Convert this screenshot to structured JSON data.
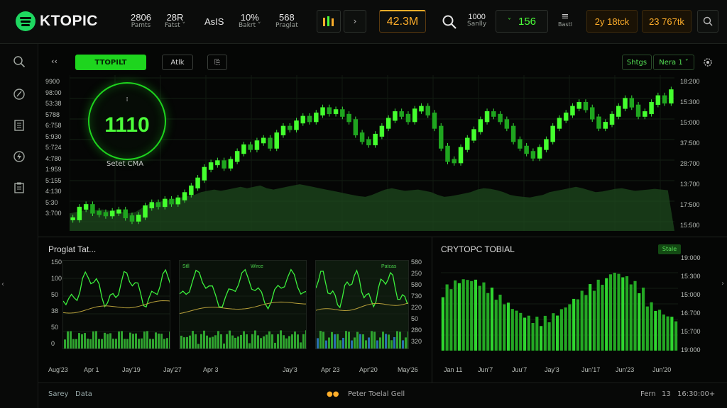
{
  "app": {
    "logo_text": "KTOPIC"
  },
  "topbar": {
    "stats": [
      {
        "value": "2806",
        "label": "Pamts"
      },
      {
        "value": "28R",
        "label": "Fatst ˅"
      },
      {
        "value": "AsIS",
        "label": ""
      },
      {
        "value": "10%",
        "label": "Bakrt ˅"
      },
      {
        "value": "568",
        "label": "Praglat"
      }
    ],
    "price_box": "42.3M",
    "search_stat": {
      "value": "1000",
      "label": "Sanlly"
    },
    "green_box": "156",
    "menu_label": "Bastl",
    "range_label": "2y 18tck",
    "count_label": "23 767tk"
  },
  "main_chart": {
    "toolbar": {
      "back": "‹‹",
      "tab_active": "TTOPILT",
      "tab2": "Atlk",
      "tab3": "⎘"
    },
    "right_controls": {
      "label1": "Shtgs",
      "dropdown": "Nera 1"
    },
    "gauge": {
      "value": "1110",
      "caption": "Setet CMA"
    },
    "left_axis": [
      "9900",
      "98:00",
      "53:38",
      "5788",
      "6:758",
      "5:930",
      "5:724",
      "4:780",
      "1:959",
      "5:155",
      "4:130",
      "5:30",
      "3:700"
    ],
    "right_axis": [
      "18:200",
      "15:300",
      "15:000",
      "37:500",
      "28:700",
      "13:700",
      "17:500",
      "15:500"
    ]
  },
  "chart_data": {
    "type": "line",
    "title": "",
    "series": [
      {
        "name": "price",
        "values": [
          12,
          28,
          32,
          22,
          20,
          18,
          22,
          24,
          15,
          10,
          16,
          30,
          35,
          32,
          40,
          36,
          42,
          50,
          60,
          72,
          88,
          95,
          98,
          90,
          100,
          112,
          122,
          118,
          128,
          132,
          120,
          140,
          150,
          148,
          158,
          165,
          160,
          170,
          178,
          172,
          175,
          168,
          160,
          140,
          130,
          125,
          138,
          150,
          162,
          172,
          168,
          160,
          176,
          180,
          170,
          150,
          120,
          100,
          98,
          118,
          132,
          145,
          160,
          172,
          168,
          160,
          150,
          130,
          120,
          112,
          105,
          118,
          130,
          150,
          162,
          170,
          180,
          186,
          178,
          164,
          150,
          156,
          168,
          180,
          192,
          182,
          168,
          172,
          186,
          196,
          188,
          205
        ]
      },
      {
        "name": "volume",
        "values": [
          20,
          22,
          24,
          26,
          25,
          26,
          24,
          25,
          22,
          20,
          22,
          28,
          34,
          36,
          38,
          40,
          42,
          44,
          46,
          48,
          52,
          54,
          56,
          54,
          56,
          58,
          60,
          58,
          60,
          62,
          58,
          56,
          58,
          60,
          62,
          64,
          62,
          60,
          58,
          56,
          54,
          52,
          50,
          48,
          46,
          45,
          48,
          52,
          56,
          58,
          56,
          54,
          55,
          56,
          54,
          52,
          48,
          45,
          46,
          48,
          50,
          52,
          56,
          58,
          57,
          55,
          52,
          48,
          46,
          45,
          44,
          46,
          48,
          52,
          54,
          56,
          58,
          60,
          58,
          55,
          52,
          53,
          55,
          57,
          58,
          56,
          54,
          55,
          56,
          57,
          56,
          55
        ]
      }
    ],
    "ylim": [
      0,
      220
    ]
  },
  "lower_left": {
    "title": "Proglat Tat...",
    "left_axis": [
      "150",
      "100",
      "50",
      "38",
      "50",
      "0"
    ],
    "mini_labels": [
      "Stll",
      "Wirce",
      "Patcas"
    ],
    "right_axis": [
      "580",
      "250",
      "580",
      "730",
      "220",
      "50",
      "280",
      "320"
    ],
    "x_labels": [
      "Aug'23",
      "Apr 1",
      "Jay'19",
      "Jay'27",
      "Apr 3",
      "Jay'3",
      "Apr 23",
      "Apr'20",
      "May'26"
    ]
  },
  "lower_right": {
    "title": "CRYTOPC TOBIAL",
    "badge": "Stale",
    "right_axis": [
      "19:000",
      "15:300",
      "15:000",
      "16:700",
      "15:700",
      "19:000"
    ],
    "x_labels": [
      "Jan 11",
      "Jun'7",
      "Juu'7",
      "Jay'3",
      "Jun'17",
      "Jun'23",
      "Jun'20"
    ]
  },
  "bottom_bar": {
    "left_a": "Sarey",
    "left_b": "Data",
    "center": "Peter  Toelal  Gell",
    "right_a": "Fern",
    "right_b": "13",
    "right_c": "16:30:00+"
  }
}
